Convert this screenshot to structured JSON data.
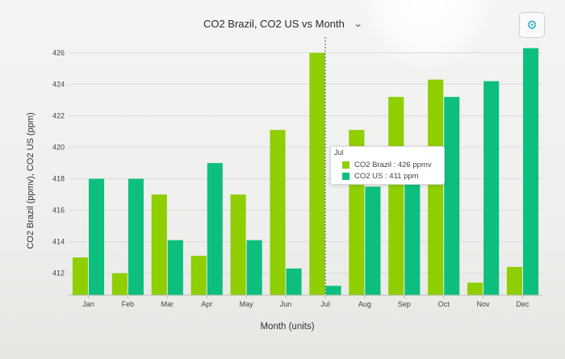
{
  "header": {
    "title": "CO2 Brazil, CO2 US vs Month",
    "dropdown_icon": "chevron-down-icon",
    "settings_icon": "gear-icon"
  },
  "colors": {
    "brazil": "#8fce00",
    "us": "#0dbf7e",
    "grid": "#dcdcdc",
    "hover_line": "#555555"
  },
  "tooltip": {
    "month": "Jul",
    "rows": [
      {
        "label": "CO2 Brazil : 426 ppmv"
      },
      {
        "label": "CO2 US : 411 ppm"
      }
    ]
  },
  "chart_data": {
    "type": "bar",
    "title": "CO2 Brazil, CO2 US vs Month",
    "xlabel": "Month (units)",
    "ylabel": "CO2 Brazil (ppmv), CO2 US (ppm)",
    "categories": [
      "Jan",
      "Feb",
      "Mar",
      "Apr",
      "May",
      "Jun",
      "Jul",
      "Aug",
      "Sep",
      "Oct",
      "Nov",
      "Dec"
    ],
    "series": [
      {
        "name": "CO2 Brazil",
        "values": [
          413,
          412,
          417,
          413.1,
          417,
          421.1,
          426,
          421.1,
          423.2,
          424.3,
          411.4,
          412.4
        ]
      },
      {
        "name": "CO2 US",
        "values": [
          418,
          418,
          414.1,
          419,
          414.1,
          412.3,
          411.2,
          417.5,
          418.5,
          423.2,
          424.2,
          426.3
        ]
      }
    ],
    "yticks": [
      412,
      414,
      416,
      418,
      420,
      422,
      424,
      426
    ],
    "ylim": [
      410.6,
      427
    ],
    "grid": true,
    "hover_category": "Jul"
  }
}
